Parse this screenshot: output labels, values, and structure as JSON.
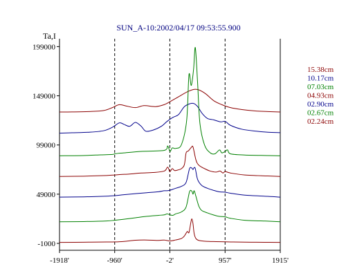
{
  "chart_data": {
    "type": "line",
    "title": "SUN_A-10:2002/04/17 09:53:55.900",
    "ylabel": "Ta,I",
    "xlabel": "",
    "x_tick_labels": [
      "-1918'",
      "-960'",
      "-2'",
      "957'",
      "1915'"
    ],
    "x_ticks": [
      -1918,
      -960,
      -2,
      957,
      1915
    ],
    "xlim": [
      -1918,
      1915
    ],
    "y_tick_labels": [
      "199000",
      "149000",
      "99000",
      "49000",
      "-1000"
    ],
    "y_ticks": [
      199000,
      149000,
      99000,
      49000,
      -1000
    ],
    "ylim": [
      -8000,
      207000
    ],
    "grid": false,
    "dashed_verticals": [
      -960,
      -2,
      957
    ],
    "legend_position": "right",
    "series": [
      {
        "name": "15.38cm",
        "color": "#8b0000",
        "x": [
          -1918,
          -1700,
          -1400,
          -1150,
          -1000,
          -880,
          -750,
          -600,
          -450,
          -250,
          -100,
          0,
          150,
          300,
          420,
          500,
          620,
          760,
          900,
          1050,
          1250,
          1500,
          1700,
          1915
        ],
        "y": [
          132500,
          132600,
          133000,
          134000,
          137000,
          140000,
          138500,
          137000,
          139000,
          138000,
          140000,
          143000,
          148000,
          153000,
          155500,
          155000,
          151000,
          144000,
          140000,
          137000,
          135000,
          133500,
          133000,
          132500
        ]
      },
      {
        "name": "10.17cm",
        "color": "#00008b",
        "x": [
          -1918,
          -1700,
          -1400,
          -1150,
          -1000,
          -880,
          -800,
          -700,
          -600,
          -500,
          -420,
          -300,
          -150,
          -50,
          50,
          150,
          250,
          350,
          420,
          480,
          560,
          650,
          760,
          880,
          960,
          1050,
          1250,
          1500,
          1700,
          1915
        ],
        "y": [
          111000,
          111400,
          112000,
          113500,
          117000,
          121500,
          120000,
          118000,
          122000,
          118000,
          113000,
          114000,
          118000,
          123000,
          127000,
          130000,
          138000,
          141000,
          141000,
          138000,
          131000,
          126000,
          124500,
          122500,
          123000,
          119000,
          115000,
          113000,
          112000,
          111500
        ]
      },
      {
        "name": "07.03cm",
        "color": "#008000",
        "x": [
          -1918,
          -1500,
          -1200,
          -1000,
          -960,
          -900,
          -800,
          -500,
          -100,
          -40,
          0,
          40,
          100,
          200,
          290,
          330,
          370,
          410,
          440,
          480,
          520,
          600,
          700,
          780,
          860,
          900,
          960,
          1000,
          1050,
          1300,
          1700,
          1915
        ],
        "y": [
          88000,
          88300,
          89000,
          89400,
          90000,
          90500,
          91000,
          92500,
          93500,
          98000,
          92500,
          96000,
          95500,
          99500,
          124000,
          170500,
          159500,
          176000,
          198000,
          162000,
          121000,
          99000,
          91000,
          90000,
          94000,
          91000,
          92500,
          94000,
          90000,
          88800,
          88300,
          88000
        ]
      },
      {
        "name": "04.93cm",
        "color": "#8b0000",
        "x": [
          -1918,
          -1500,
          -1100,
          -960,
          -850,
          -700,
          -500,
          -300,
          -100,
          -40,
          -2,
          40,
          80,
          150,
          200,
          250,
          280,
          320,
          370,
          400,
          450,
          500,
          600,
          700,
          800,
          870,
          920,
          960,
          1050,
          1300,
          1700,
          1915
        ],
        "y": [
          67000,
          67300,
          68000,
          68500,
          69000,
          69500,
          70500,
          71000,
          72500,
          76500,
          72000,
          75000,
          73000,
          73800,
          75000,
          79000,
          91000,
          93000,
          96500,
          97000,
          84000,
          78500,
          75000,
          72500,
          71500,
          72500,
          70500,
          72000,
          70500,
          68500,
          67500,
          67000
        ]
      },
      {
        "name": "02.90cm",
        "color": "#00008b",
        "x": [
          -1918,
          -1500,
          -1100,
          -960,
          -800,
          -600,
          -400,
          -200,
          -100,
          -50,
          0,
          50,
          100,
          200,
          280,
          340,
          380,
          400,
          420,
          440,
          480,
          550,
          650,
          750,
          850,
          960,
          1050,
          1300,
          1700,
          1915
        ],
        "y": [
          46000,
          46300,
          47000,
          47500,
          48500,
          49500,
          50500,
          51500,
          52500,
          52500,
          53000,
          54000,
          55000,
          57000,
          61000,
          75000,
          75500,
          74000,
          76000,
          75000,
          64000,
          58000,
          55000,
          53000,
          51500,
          51000,
          50000,
          48000,
          46800,
          46000
        ]
      },
      {
        "name": "02.67cm",
        "color": "#008000",
        "x": [
          -1918,
          -1500,
          -1100,
          -960,
          -800,
          -600,
          -400,
          -200,
          -100,
          -50,
          0,
          50,
          100,
          200,
          280,
          340,
          380,
          400,
          420,
          450,
          500,
          550,
          650,
          750,
          850,
          960,
          1050,
          1300,
          1700,
          1915
        ],
        "y": [
          21000,
          21200,
          21800,
          22500,
          23500,
          25000,
          26500,
          27500,
          28000,
          29000,
          28000,
          27500,
          29000,
          31000,
          36000,
          51500,
          52000,
          49000,
          52500,
          47000,
          37000,
          32500,
          30000,
          28000,
          26500,
          26000,
          24500,
          22500,
          21600,
          21000
        ]
      },
      {
        "name": "02.24cm",
        "color": "#8b0000",
        "x": [
          -1918,
          -1500,
          -1100,
          -960,
          -800,
          -600,
          -400,
          -200,
          -100,
          0,
          100,
          200,
          250,
          300,
          330,
          360,
          380,
          400,
          420,
          450,
          500,
          600,
          700,
          800,
          960,
          1100,
          1400,
          1700,
          1915
        ],
        "y": [
          0,
          200,
          400,
          500,
          1000,
          2200,
          2400,
          2000,
          2400,
          1500,
          2500,
          4000,
          6500,
          11000,
          10000,
          19500,
          24000,
          19000,
          9000,
          4000,
          2000,
          1200,
          900,
          800,
          600,
          400,
          200,
          100,
          0
        ]
      }
    ]
  }
}
